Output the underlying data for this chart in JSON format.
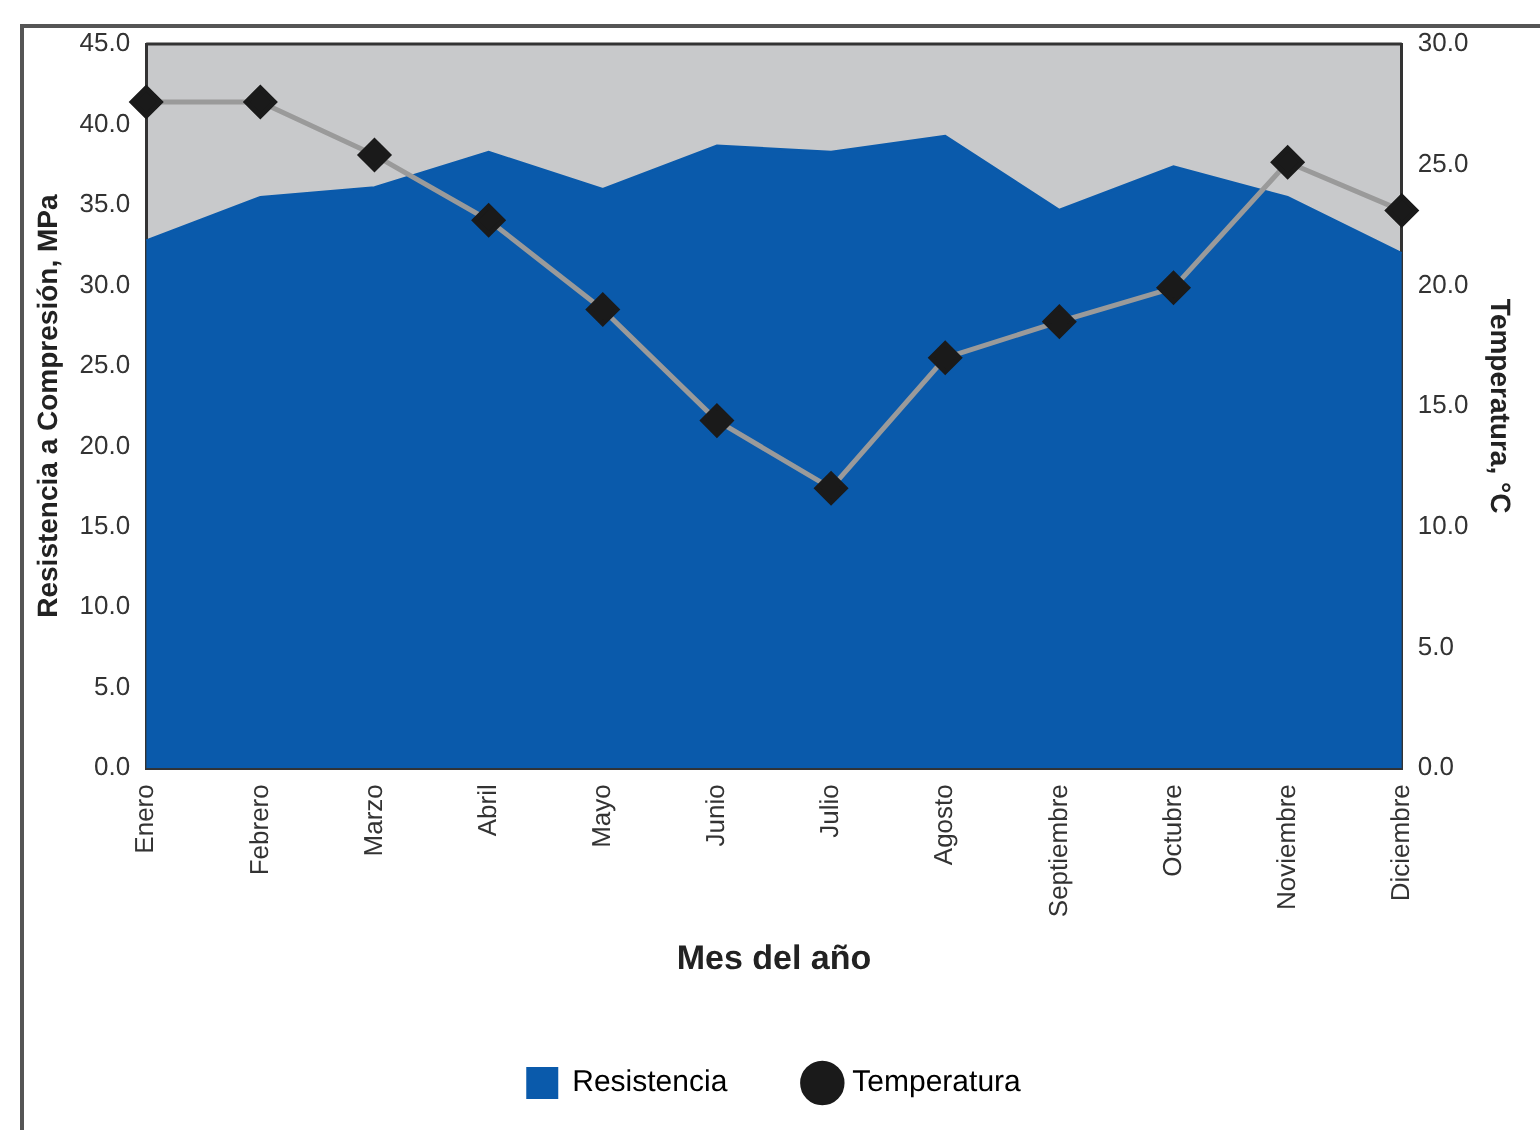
{
  "chart_data": {
    "type": "area",
    "xlabel": "Mes del año",
    "ylabel": "Resistencia a Compresión, MPa",
    "y2label": "Temperatura, °C",
    "categories": [
      "Enero",
      "Febrero",
      "Marzo",
      "Abril",
      "Mayo",
      "Junio",
      "Julio",
      "Agosto",
      "Septiembre",
      "Octubre",
      "Noviembre",
      "Diciembre"
    ],
    "series": [
      {
        "name": "Resistencia",
        "color": "#0a5aab",
        "values": [
          32.8,
          35.5,
          36.1,
          38.3,
          36.0,
          38.7,
          38.3,
          39.3,
          34.7,
          37.4,
          35.5,
          32.0
        ]
      },
      {
        "name": "Temperatura",
        "type": "line",
        "axis": "y2",
        "color": "#9a9a9a",
        "marker": "diamond",
        "values": [
          27.6,
          27.6,
          25.4,
          22.7,
          19.0,
          14.4,
          11.6,
          17.0,
          18.5,
          19.9,
          25.1,
          23.1
        ]
      }
    ],
    "ylim": [
      0,
      45
    ],
    "yticks": [
      {
        "value": 0,
        "label": "0.0"
      },
      {
        "value": 5,
        "label": "5.0"
      },
      {
        "value": 10,
        "label": "10.0"
      },
      {
        "value": 15,
        "label": "15.0"
      },
      {
        "value": 20,
        "label": "20.0"
      },
      {
        "value": 25,
        "label": "25.0"
      },
      {
        "value": 30,
        "label": "30.0"
      },
      {
        "value": 35,
        "label": "35.0"
      },
      {
        "value": 40,
        "label": "40.0"
      },
      {
        "value": 45,
        "label": "45.0"
      }
    ],
    "y2lim": [
      0,
      30
    ],
    "y2ticks": [
      {
        "value": 0,
        "label": "0.0"
      },
      {
        "value": 5,
        "label": "5.0"
      },
      {
        "value": 10,
        "label": "10.0"
      },
      {
        "value": 15,
        "label": "15.0"
      },
      {
        "value": 20,
        "label": "20.0"
      },
      {
        "value": 25,
        "label": "25.0"
      },
      {
        "value": 30,
        "label": "30.0"
      }
    ],
    "grid": false,
    "legend": "bottom"
  }
}
